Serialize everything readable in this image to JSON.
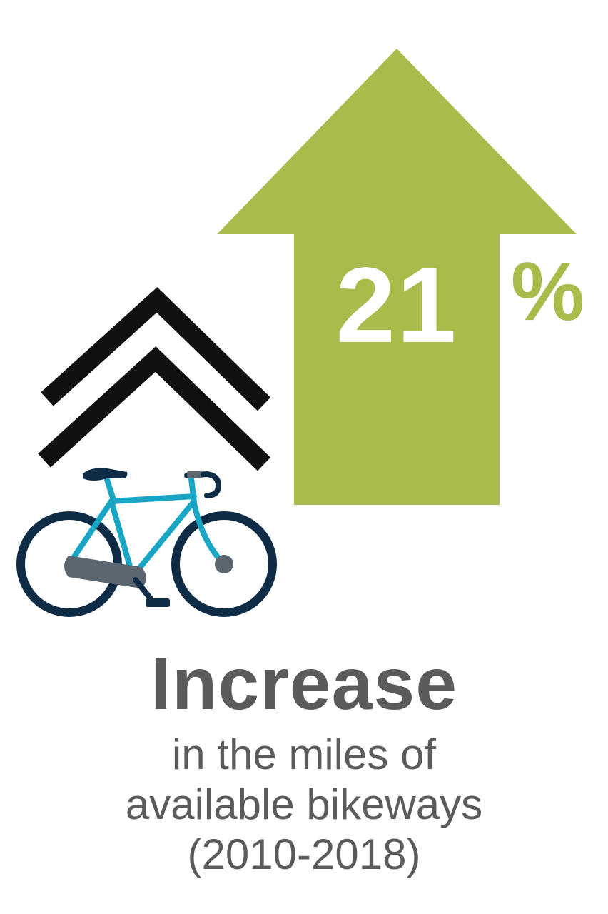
{
  "stat": {
    "value": "21",
    "unit": "%"
  },
  "headline": "Increase",
  "caption_lines": [
    "in the miles of",
    "available bikeways",
    "(2010-2018)"
  ],
  "colors": {
    "arrow_green": "#a8bb4b",
    "text_gray": "#5b5b5b",
    "chevron_black": "#111111",
    "bike_frame_teal": "#19a6c4",
    "bike_wheel_navy": "#0f2c47",
    "bike_chainring_gray": "#5b6670"
  },
  "icons": [
    "up-arrow-icon",
    "double-chevron-up-icon",
    "bicycle-icon"
  ]
}
